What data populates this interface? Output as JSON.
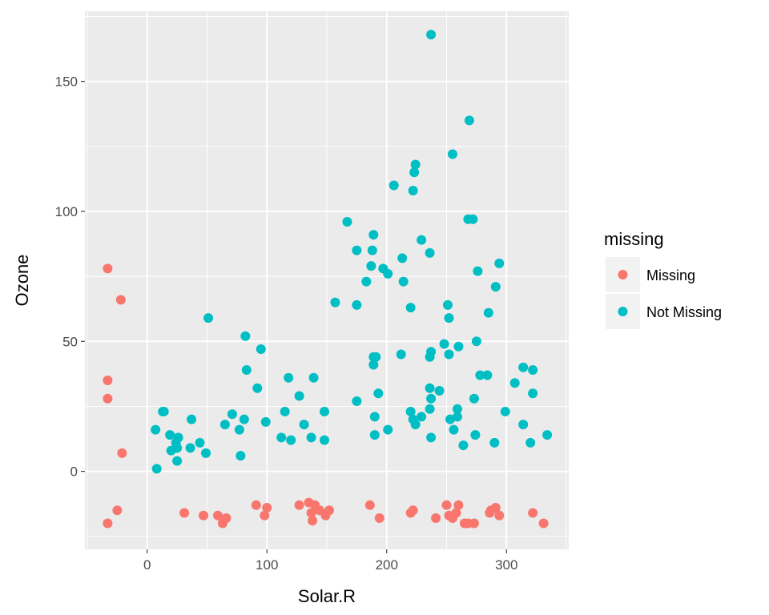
{
  "chart_data": {
    "type": "scatter",
    "xlabel": "Solar.R",
    "ylabel": "Ozone",
    "xlim": [
      -52,
      352
    ],
    "ylim": [
      -30,
      177
    ],
    "x_ticks": [
      0,
      100,
      200,
      300
    ],
    "y_ticks": [
      0,
      50,
      100,
      150
    ],
    "x_tick_labels": [
      "0",
      "100",
      "200",
      "300"
    ],
    "y_tick_labels": [
      "0",
      "50",
      "100",
      "150"
    ],
    "grid": true,
    "legend": {
      "title": "missing",
      "position": "right",
      "entries": [
        "Missing",
        "Not Missing"
      ]
    },
    "series": [
      {
        "name": "Missing",
        "color": "#F8766D",
        "points": [
          [
            -33,
            78
          ],
          [
            -22,
            66
          ],
          [
            -33,
            35
          ],
          [
            -33,
            28
          ],
          [
            -21,
            7
          ],
          [
            -25,
            -15
          ],
          [
            -33,
            -20
          ],
          [
            31,
            -16
          ],
          [
            47,
            -17
          ],
          [
            59,
            -17
          ],
          [
            63,
            -20
          ],
          [
            66,
            -18
          ],
          [
            91,
            -13
          ],
          [
            98,
            -17
          ],
          [
            100,
            -14
          ],
          [
            127,
            -13
          ],
          [
            135,
            -12
          ],
          [
            137,
            -16
          ],
          [
            138,
            -19
          ],
          [
            140,
            -13
          ],
          [
            144,
            -15
          ],
          [
            149,
            -17
          ],
          [
            152,
            -15
          ],
          [
            186,
            -13
          ],
          [
            194,
            -18
          ],
          [
            220,
            -16
          ],
          [
            222,
            -15
          ],
          [
            241,
            -18
          ],
          [
            250,
            -13
          ],
          [
            252,
            -17
          ],
          [
            255,
            -18
          ],
          [
            258,
            -16
          ],
          [
            260,
            -13
          ],
          [
            265,
            -20
          ],
          [
            268,
            -20
          ],
          [
            273,
            -20
          ],
          [
            286,
            -16
          ],
          [
            287,
            -15
          ],
          [
            291,
            -14
          ],
          [
            294,
            -17
          ],
          [
            322,
            -16
          ],
          [
            331,
            -20
          ]
        ]
      },
      {
        "name": "Not Missing",
        "color": "#00BFC4",
        "points": [
          [
            237,
            168
          ],
          [
            269,
            135
          ],
          [
            255,
            122
          ],
          [
            224,
            118
          ],
          [
            223,
            115
          ],
          [
            206,
            110
          ],
          [
            222,
            108
          ],
          [
            167,
            96
          ],
          [
            268,
            97
          ],
          [
            272,
            97
          ],
          [
            189,
            91
          ],
          [
            229,
            89
          ],
          [
            175,
            85
          ],
          [
            188,
            85
          ],
          [
            236,
            84
          ],
          [
            213,
            82
          ],
          [
            294,
            80
          ],
          [
            187,
            79
          ],
          [
            197,
            78
          ],
          [
            276,
            77
          ],
          [
            201,
            76
          ],
          [
            183,
            73
          ],
          [
            214,
            73
          ],
          [
            291,
            71
          ],
          [
            157,
            65
          ],
          [
            175,
            64
          ],
          [
            251,
            64
          ],
          [
            220,
            63
          ],
          [
            285,
            61
          ],
          [
            51,
            59
          ],
          [
            252,
            59
          ],
          [
            275,
            50
          ],
          [
            248,
            49
          ],
          [
            260,
            48
          ],
          [
            95,
            47
          ],
          [
            237,
            46
          ],
          [
            252,
            45
          ],
          [
            212,
            45
          ],
          [
            191,
            44
          ],
          [
            189,
            44
          ],
          [
            236,
            44
          ],
          [
            189,
            41
          ],
          [
            82,
            52
          ],
          [
            314,
            40
          ],
          [
            322,
            39
          ],
          [
            83,
            39
          ],
          [
            278,
            37
          ],
          [
            284,
            37
          ],
          [
            139,
            36
          ],
          [
            118,
            36
          ],
          [
            307,
            34
          ],
          [
            92,
            32
          ],
          [
            236,
            32
          ],
          [
            244,
            31
          ],
          [
            193,
            30
          ],
          [
            322,
            30
          ],
          [
            127,
            29
          ],
          [
            237,
            28
          ],
          [
            273,
            28
          ],
          [
            175,
            27
          ],
          [
            13,
            23
          ],
          [
            14,
            23
          ],
          [
            115,
            23
          ],
          [
            148,
            23
          ],
          [
            220,
            23
          ],
          [
            299,
            23
          ],
          [
            259,
            24
          ],
          [
            236,
            24
          ],
          [
            71,
            22
          ],
          [
            190,
            21
          ],
          [
            229,
            21
          ],
          [
            259,
            21
          ],
          [
            37,
            20
          ],
          [
            81,
            20
          ],
          [
            222,
            20
          ],
          [
            253,
            20
          ],
          [
            99,
            19
          ],
          [
            65,
            18
          ],
          [
            131,
            18
          ],
          [
            224,
            18
          ],
          [
            314,
            18
          ],
          [
            77,
            16
          ],
          [
            7,
            16
          ],
          [
            201,
            16
          ],
          [
            256,
            16
          ],
          [
            19,
            14
          ],
          [
            190,
            14
          ],
          [
            274,
            14
          ],
          [
            334,
            14
          ],
          [
            26,
            13
          ],
          [
            112,
            13
          ],
          [
            137,
            13
          ],
          [
            237,
            13
          ],
          [
            120,
            12
          ],
          [
            148,
            12
          ],
          [
            24,
            11
          ],
          [
            44,
            11
          ],
          [
            290,
            11
          ],
          [
            320,
            11
          ],
          [
            264,
            10
          ],
          [
            25,
            9
          ],
          [
            36,
            9
          ],
          [
            20,
            8
          ],
          [
            49,
            7
          ],
          [
            78,
            6
          ],
          [
            25,
            4
          ],
          [
            8,
            1
          ]
        ]
      }
    ]
  }
}
